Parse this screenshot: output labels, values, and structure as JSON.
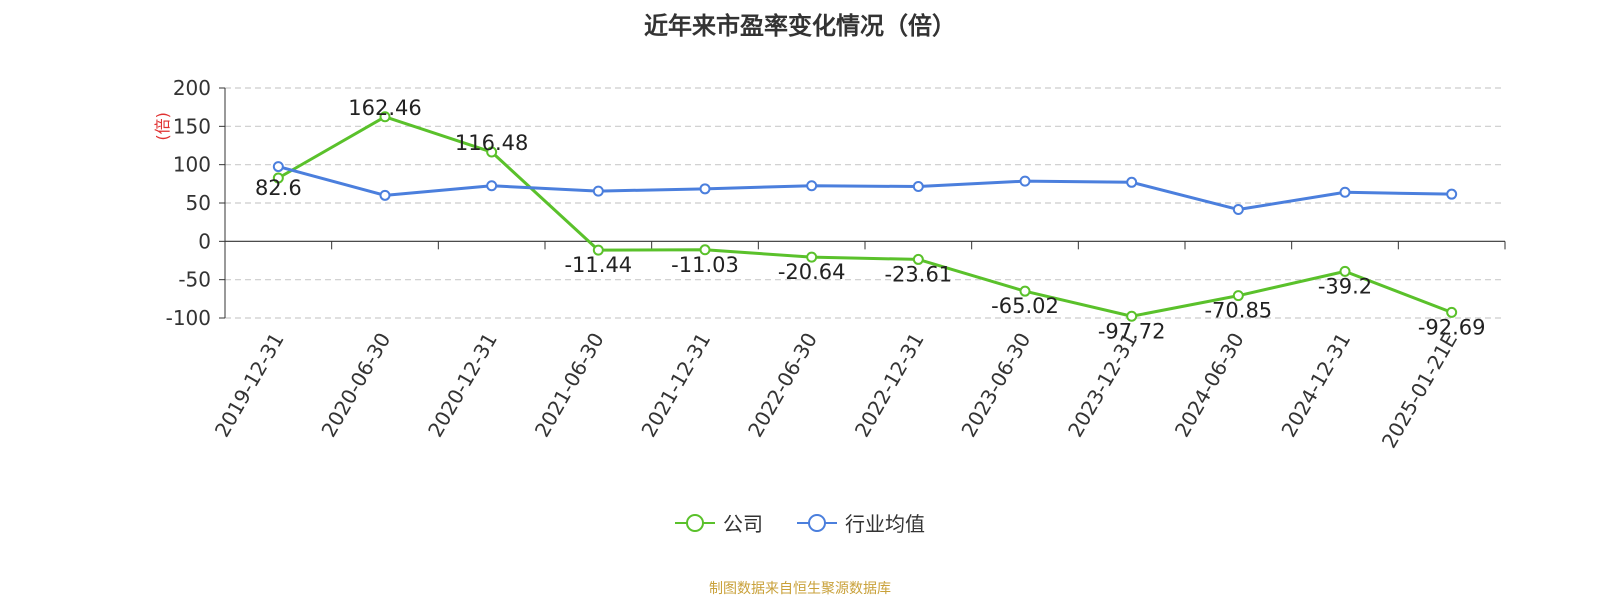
{
  "chart_data": {
    "type": "line",
    "title": "近年来市盈率变化情况（倍）",
    "ylabel": "(倍)",
    "ylim": [
      -100,
      200
    ],
    "yticks": [
      200,
      150,
      100,
      50,
      0,
      -50,
      -100
    ],
    "grid": true,
    "legend_position": "bottom",
    "categories": [
      "2019-12-31",
      "2020-06-30",
      "2020-12-31",
      "2021-06-30",
      "2021-12-31",
      "2022-06-30",
      "2022-12-31",
      "2023-06-30",
      "2023-12-31",
      "2024-06-30",
      "2024-12-31",
      "2025-01-21E"
    ],
    "series": [
      {
        "name": "公司",
        "color": "#5ac12b",
        "values": [
          82.6,
          162.46,
          116.48,
          -11.44,
          -11.03,
          -20.64,
          -23.61,
          -65.02,
          -97.72,
          -70.85,
          -39.2,
          -92.69
        ],
        "labels": [
          "82.6",
          "162.46",
          "116.48",
          "-11.44",
          "-11.03",
          "-20.64",
          "-23.61",
          "-65.02",
          "-97.72",
          "-70.85",
          "-39.2",
          "-92.69"
        ]
      },
      {
        "name": "行业均值",
        "color": "#4b7fdd",
        "values": [
          97.5,
          60.0,
          72.5,
          65.5,
          68.5,
          72.5,
          71.5,
          78.5,
          77.0,
          41.5,
          64.0,
          61.5
        ]
      }
    ]
  },
  "source": "制图数据来自恒生聚源数据库"
}
